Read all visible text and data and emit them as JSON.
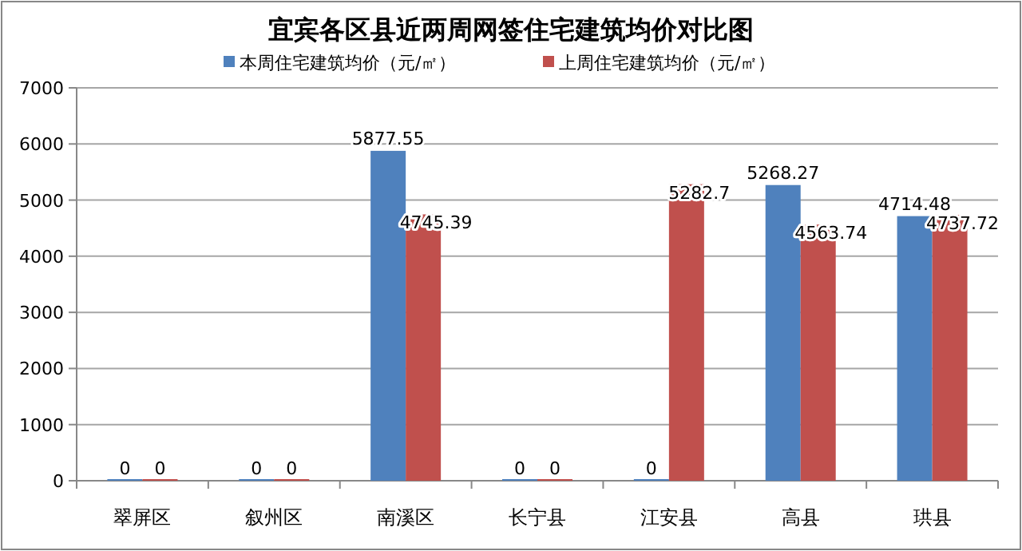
{
  "chart_data": {
    "type": "bar",
    "title": "宜宾各区县近两周网签住宅建筑均价对比图",
    "categories": [
      "翠屏区",
      "叙州区",
      "南溪区",
      "长宁县",
      "江安县",
      "高县",
      "珙县"
    ],
    "series": [
      {
        "name": "本周住宅建筑均价（元/㎡）",
        "color": "#4f81bd",
        "values": [
          0,
          0,
          5877.55,
          0,
          0,
          5268.27,
          4714.48
        ]
      },
      {
        "name": "上周住宅建筑均价（元/㎡）",
        "color": "#c0504d",
        "values": [
          0,
          0,
          4745.39,
          0,
          5282.7,
          4563.74,
          4737.72
        ]
      }
    ],
    "ylim": [
      0,
      7000
    ],
    "yticks": [
      0,
      1000,
      2000,
      3000,
      4000,
      5000,
      6000,
      7000
    ],
    "grid": "y",
    "legend": "top",
    "data_labels": true
  }
}
